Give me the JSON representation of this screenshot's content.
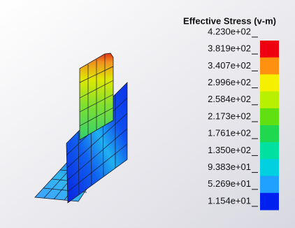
{
  "legend": {
    "title": "Effective Stress (v-m)",
    "labels": [
      "4.230e+02",
      "3.819e+02",
      "3.407e+02",
      "2.996e+02",
      "2.584e+02",
      "2.173e+02",
      "1.761e+02",
      "1.350e+02",
      "9.383e+01",
      "5.269e+01",
      "1.154e+01"
    ],
    "colors": [
      "#ee0010",
      "#ff9010",
      "#f4f000",
      "#b8f000",
      "#60e010",
      "#20d850",
      "#00e0a0",
      "#00d0e0",
      "#20a0ff",
      "#0020f0"
    ]
  }
}
